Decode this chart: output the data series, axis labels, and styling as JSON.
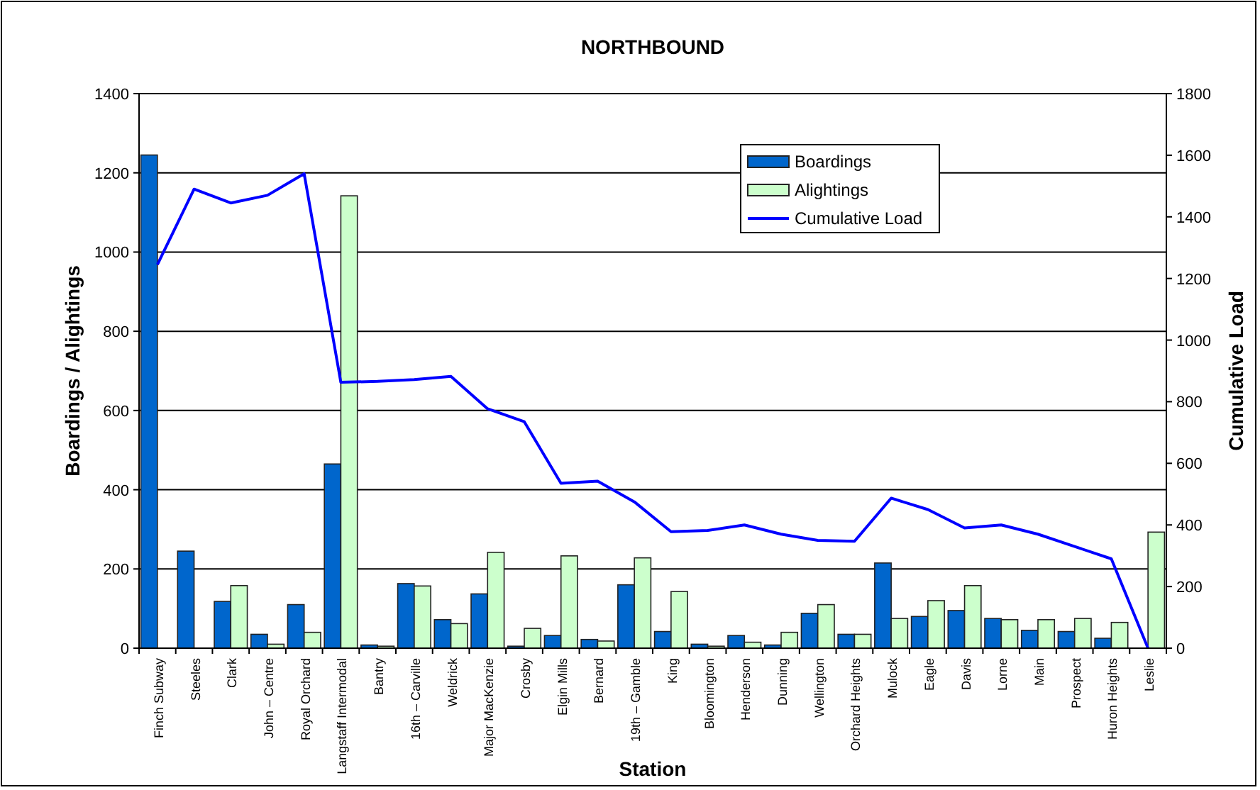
{
  "chart_data": {
    "type": "bar",
    "title": "NORTHBOUND",
    "xlabel": "Station",
    "ylabel": "Boardings / Alightings",
    "y2label": "Cumulative Load",
    "categories": [
      "Finch Subway",
      "Steeles",
      "Clark",
      "John – Centre",
      "Royal Orchard",
      "Langstaff Intermodal",
      "Bantry",
      "16th – Carville",
      "Weldrick",
      "Major MacKenzie",
      "Crosby",
      "Elgin Mills",
      "Bernard",
      "19th – Gamble",
      "King",
      "Bloomington",
      "Henderson",
      "Dunning",
      "Wellington",
      "Orchard Heights",
      "Mulock",
      "Eagle",
      "Davis",
      "Lorne",
      "Main",
      "Prospect",
      "Huron Heights",
      "Leslie"
    ],
    "series": [
      {
        "name": "Boardings",
        "color": "#0066cc",
        "values": [
          1245,
          245,
          118,
          35,
          110,
          465,
          8,
          163,
          72,
          137,
          5,
          32,
          22,
          160,
          42,
          10,
          32,
          8,
          88,
          35,
          215,
          80,
          95,
          75,
          45,
          42,
          25,
          0
        ]
      },
      {
        "name": "Alightings",
        "color": "#ccffcc",
        "values": [
          0,
          0,
          158,
          10,
          40,
          1142,
          5,
          157,
          62,
          242,
          50,
          233,
          18,
          228,
          143,
          5,
          15,
          40,
          110,
          35,
          75,
          120,
          158,
          72,
          72,
          75,
          65,
          293
        ]
      },
      {
        "name": "Cumulative Load",
        "type": "line",
        "axis": "y2",
        "color": "#0000ff",
        "values": [
          1245,
          1490,
          1445,
          1470,
          1540,
          863,
          866,
          872,
          882,
          777,
          735,
          535,
          542,
          475,
          378,
          382,
          400,
          370,
          350,
          347,
          487,
          450,
          390,
          400,
          370,
          330,
          290,
          0
        ]
      }
    ],
    "ylim": [
      0,
      1400
    ],
    "yticks": [
      0,
      200,
      400,
      600,
      800,
      1000,
      1200,
      1400
    ],
    "y2lim": [
      0,
      1800
    ],
    "y2ticks": [
      0,
      200,
      400,
      600,
      800,
      1000,
      1200,
      1400,
      1600,
      1800
    ],
    "grid": "y",
    "legend": "top right",
    "marker": "none",
    "line_style": "solid"
  }
}
